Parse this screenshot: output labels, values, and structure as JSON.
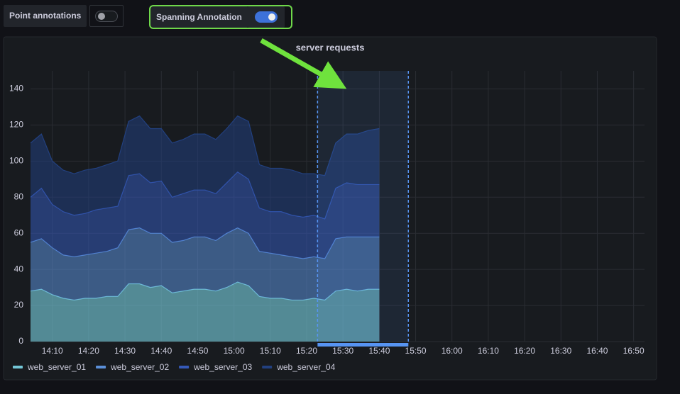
{
  "controls": {
    "point_annotations": {
      "label": "Point annotations",
      "on": false
    },
    "spanning_annotation": {
      "label": "Spanning Annotation",
      "on": true
    }
  },
  "chart_data": {
    "type": "stacked-area",
    "title": "server requests",
    "x": [
      "14:04",
      "14:07",
      "14:10",
      "14:13",
      "14:16",
      "14:19",
      "14:22",
      "14:25",
      "14:28",
      "14:31",
      "14:34",
      "14:37",
      "14:40",
      "14:43",
      "14:46",
      "14:49",
      "14:52",
      "14:55",
      "14:58",
      "15:01",
      "15:04",
      "15:07",
      "15:10",
      "15:13",
      "15:16",
      "15:19",
      "15:22",
      "15:25",
      "15:28",
      "15:31",
      "15:34",
      "15:37",
      "15:40"
    ],
    "series": [
      {
        "name": "web_server_01",
        "color": "#73c6d6",
        "values": [
          28,
          29,
          26,
          24,
          23,
          24,
          24,
          25,
          25,
          32,
          32,
          30,
          31,
          27,
          28,
          29,
          29,
          28,
          30,
          33,
          31,
          25,
          24,
          24,
          23,
          23,
          24,
          23,
          28,
          29,
          28,
          29,
          29
        ]
      },
      {
        "name": "web_server_02",
        "color": "#5b8fd8",
        "values": [
          27,
          28,
          26,
          24,
          24,
          24,
          25,
          25,
          27,
          30,
          31,
          30,
          29,
          28,
          28,
          29,
          29,
          28,
          30,
          30,
          29,
          25,
          25,
          24,
          24,
          23,
          23,
          23,
          29,
          29,
          30,
          29,
          29
        ]
      },
      {
        "name": "web_server_03",
        "color": "#3559b8",
        "values": [
          25,
          28,
          24,
          24,
          23,
          23,
          24,
          24,
          23,
          30,
          30,
          28,
          29,
          25,
          26,
          26,
          26,
          26,
          28,
          31,
          30,
          24,
          23,
          24,
          23,
          23,
          23,
          22,
          28,
          30,
          29,
          29,
          29
        ]
      },
      {
        "name": "web_server_04",
        "color": "#22407f",
        "values": [
          30,
          30,
          24,
          23,
          23,
          24,
          23,
          24,
          25,
          30,
          32,
          30,
          29,
          30,
          30,
          31,
          31,
          30,
          30,
          31,
          32,
          24,
          24,
          24,
          25,
          24,
          23,
          24,
          25,
          27,
          28,
          30,
          31
        ]
      }
    ],
    "xlim": [
      "14:04",
      "16:53"
    ],
    "xticks": [
      "14:10",
      "14:20",
      "14:30",
      "14:40",
      "14:50",
      "15:00",
      "15:10",
      "15:20",
      "15:30",
      "15:40",
      "15:50",
      "16:00",
      "16:10",
      "16:20",
      "16:30",
      "16:40",
      "16:50"
    ],
    "ylim": [
      0,
      150
    ],
    "yticks": [
      0,
      20,
      40,
      60,
      80,
      100,
      120,
      140
    ],
    "grid": true,
    "annotation": {
      "start": "15:23",
      "end": "15:48",
      "color": "#5794f2"
    }
  }
}
